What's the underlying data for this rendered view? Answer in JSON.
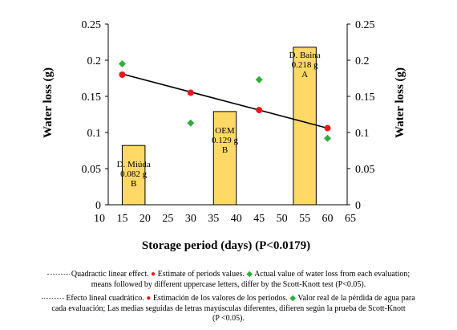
{
  "chart_data": {
    "type": "bar",
    "xlabel": "Storage period (days) (P<0.0179)",
    "ylabel": "Water loss (g)",
    "ylabel_right": "Water loss (g)",
    "xlim": [
      10,
      65
    ],
    "xticks": [
      10,
      15,
      20,
      25,
      30,
      35,
      40,
      45,
      50,
      55,
      60,
      65
    ],
    "ylim": [
      0,
      0.25
    ],
    "yticks": [
      "0",
      "0.05",
      "0.1",
      "0.15",
      "0.2",
      "0.25"
    ],
    "yticks_values": [
      0,
      0.05,
      0.1,
      0.15,
      0.2,
      0.25
    ],
    "bars": [
      {
        "x_start": 15,
        "x_end": 20,
        "value": 0.082,
        "label_lines": [
          "D. Miúda",
          "0.082 g",
          "B"
        ]
      },
      {
        "x_start": 35,
        "x_end": 40,
        "value": 0.129,
        "label_lines": [
          "OEM",
          "0.129 g",
          "B"
        ]
      },
      {
        "x_start": 52.5,
        "x_end": 57.5,
        "value": 0.218,
        "label_lines": [
          "D. Baina",
          "0.218 g",
          "A"
        ]
      }
    ],
    "estimate_points": {
      "x": [
        15,
        30,
        45,
        60
      ],
      "y": [
        0.18,
        0.155,
        0.131,
        0.106
      ]
    },
    "actual_points": {
      "x": [
        15,
        30,
        45,
        60
      ],
      "y": [
        0.195,
        0.113,
        0.173,
        0.092
      ]
    },
    "trendline": {
      "x": [
        15,
        60
      ],
      "y": [
        0.181,
        0.106
      ]
    },
    "colors": {
      "bar_fill": "#ffd866",
      "bar_stroke": "#000000",
      "estimate": "#e8191c",
      "actual": "#2fae3c",
      "trend": "#000000"
    }
  },
  "caption_en": {
    "trend": "Quadractic linear effect.",
    "estimate": "Estimate of periods values.",
    "actual_line1": "Actual value of water loss from each evaluation;",
    "line2": "means followed by different uppercase letters, differ by the Scott-Knott test (P<0.05)."
  },
  "caption_es": {
    "trend": "Efecto lineal cuadrático.",
    "estimate": "Estimación de los valores de los períodos.",
    "actual_line1": "Valor real de la pérdida de agua para",
    "line2": "cada evaluación; Las medias seguidas de letras mayúsculas diferentes, difieren según la prueba de Scott-Knott",
    "line3": "(P <0.05)."
  }
}
